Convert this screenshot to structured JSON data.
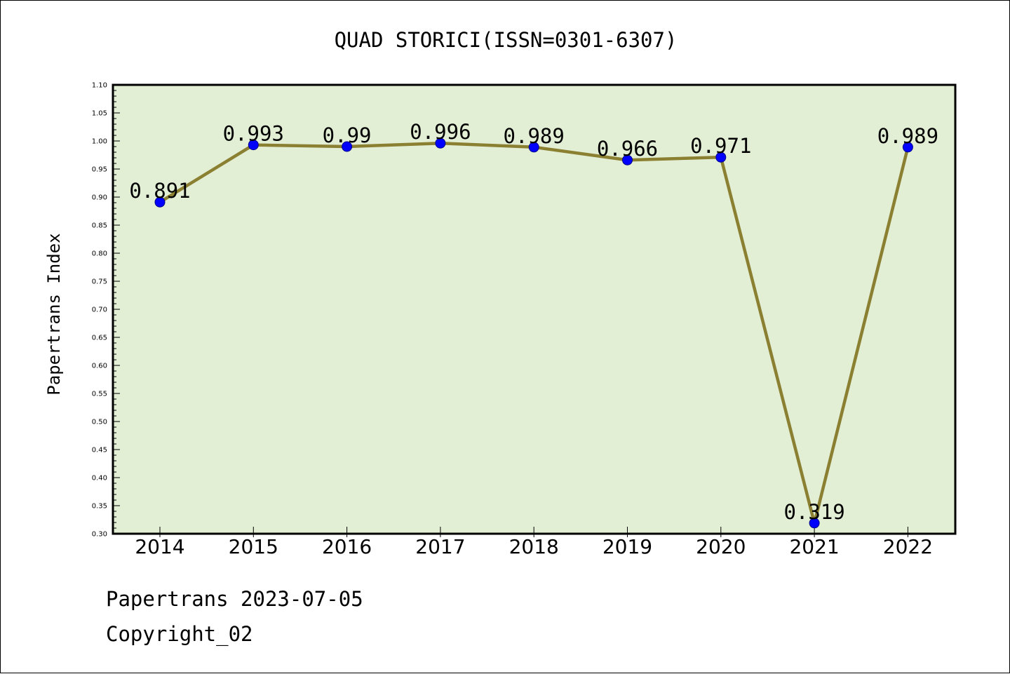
{
  "chart_data": {
    "type": "line",
    "title": "QUAD STORICI(ISSN=0301-6307)",
    "xlabel": "",
    "ylabel": "Papertrans Index",
    "categories": [
      "2014",
      "2015",
      "2016",
      "2017",
      "2018",
      "2019",
      "2020",
      "2021",
      "2022"
    ],
    "series": [
      {
        "values": [
          0.891,
          0.993,
          0.99,
          0.996,
          0.989,
          0.966,
          0.971,
          0.319,
          0.989
        ],
        "labels": [
          "0.891",
          "0.993",
          "0.99",
          "0.996",
          "0.989",
          "0.966",
          "0.971",
          "0.319",
          "0.989"
        ]
      }
    ],
    "ylim": [
      0.3,
      1.1
    ],
    "ytick_step": 0.05,
    "ytick_labels": [
      "0.30",
      "0.35",
      "0.40",
      "0.45",
      "0.50",
      "0.55",
      "0.60",
      "0.65",
      "0.70",
      "0.75",
      "0.80",
      "0.85",
      "0.90",
      "0.95",
      "1.00",
      "1.05",
      "1.10"
    ],
    "grid": false,
    "colors": {
      "plot_background": "#e2efd5",
      "line": "#8b8032",
      "marker_fill": "#0000ff",
      "marker_edge": "#00008b",
      "axis": "#000000"
    }
  },
  "footer": {
    "line1": "Papertrans 2023-07-05",
    "line2": "Copyright_02"
  }
}
